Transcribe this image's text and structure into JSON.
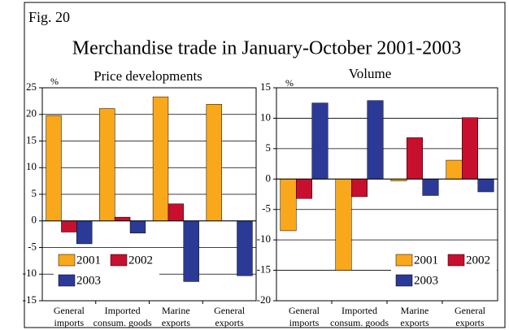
{
  "figure": "Fig. 20",
  "title": "Merchandise trade in January-October 2001-2003",
  "chart_data": [
    {
      "type": "bar",
      "title": "Price developments",
      "y_label": "%",
      "categories": [
        [
          "General",
          "imports"
        ],
        [
          "Imported",
          "consum. goods"
        ],
        [
          "Marine",
          "exports"
        ],
        [
          "General",
          "exports"
        ]
      ],
      "series": [
        {
          "name": "2001",
          "color": "#f9a81b",
          "values": [
            19.8,
            21.1,
            23.3,
            21.9
          ]
        },
        {
          "name": "2002",
          "color": "#c8102e",
          "values": [
            -2.1,
            0.7,
            3.2,
            0
          ]
        },
        {
          "name": "2003",
          "color": "#2b3a97",
          "values": [
            -4.3,
            -2.3,
            -11.4,
            -10.3
          ]
        }
      ],
      "ylim": [
        -15,
        25
      ],
      "yticks": [
        -15,
        -10,
        -5,
        0,
        5,
        10,
        15,
        20,
        25
      ],
      "grid": true,
      "legend": "lower left"
    },
    {
      "type": "bar",
      "title": "Volume",
      "y_label": "%",
      "categories": [
        [
          "General",
          "imports"
        ],
        [
          "Imported",
          "consum. goods"
        ],
        [
          "Marine",
          "exports"
        ],
        [
          "General",
          "exports"
        ]
      ],
      "series": [
        {
          "name": "2001",
          "color": "#f9a81b",
          "values": [
            -8.5,
            -15,
            -0.3,
            3.1
          ]
        },
        {
          "name": "2002",
          "color": "#c8102e",
          "values": [
            -3.2,
            -2.9,
            6.8,
            10.1
          ]
        },
        {
          "name": "2003",
          "color": "#2b3a97",
          "values": [
            12.5,
            12.9,
            -2.7,
            -2.1
          ]
        }
      ],
      "ylim": [
        -20,
        15
      ],
      "yticks": [
        -20,
        -15,
        -10,
        -5,
        0,
        5,
        10,
        15
      ],
      "grid": true,
      "legend": "lower right"
    }
  ]
}
